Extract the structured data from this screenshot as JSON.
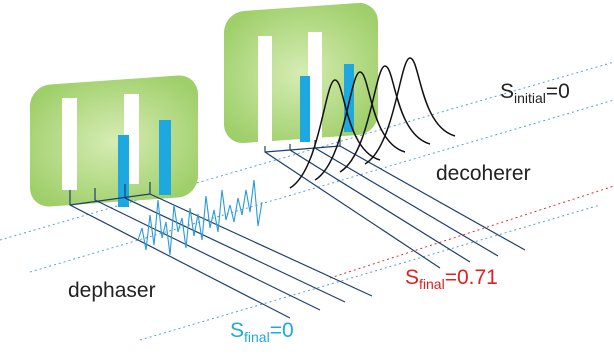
{
  "labels": {
    "dephaser": "dephaser",
    "decoherer": "decoherer",
    "s_initial": {
      "symbol": "S",
      "subscript": "initial",
      "rest": "=0"
    },
    "s_final_decoherer": {
      "symbol": "S",
      "subscript": "final",
      "rest": "=0.71"
    },
    "s_final_dephaser": {
      "symbol": "S",
      "subscript": "final",
      "rest": "=0"
    }
  }
}
